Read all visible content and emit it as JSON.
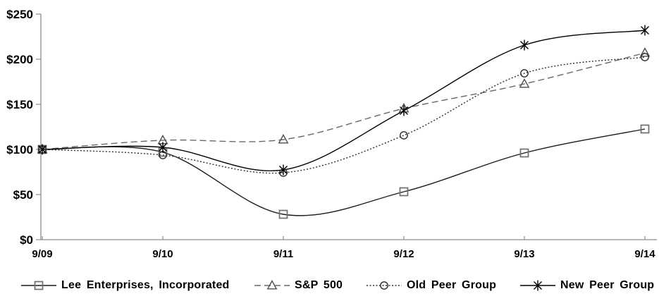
{
  "chart_data": {
    "type": "line",
    "title": "",
    "categories": [
      "9/09",
      "9/10",
      "9/11",
      "9/12",
      "9/13",
      "9/14"
    ],
    "series": [
      {
        "name": "Lee Enterprises, Incorporated",
        "values": [
          100,
          97,
          28,
          53,
          96,
          123
        ],
        "line_style": "solid",
        "marker": "square",
        "line_color": "#1c1c1c",
        "marker_color": "#6f6f6f"
      },
      {
        "name": "S&P 500",
        "values": [
          100,
          110,
          111,
          145,
          173,
          207
        ],
        "line_style": "dashed",
        "marker": "triangle",
        "line_color": "#686868",
        "marker_color": "#4f4f4f"
      },
      {
        "name": "Old Peer Group",
        "values": [
          100,
          94,
          74,
          116,
          184,
          202
        ],
        "line_style": "dotted",
        "marker": "circle",
        "line_color": "#2e2e2e",
        "marker_color": "#2e2e2e"
      },
      {
        "name": "New Peer Group",
        "values": [
          100,
          102,
          77,
          143,
          216,
          232
        ],
        "line_style": "solid",
        "marker": "asterisk",
        "line_color": "#000000",
        "marker_color": "#000000"
      }
    ],
    "xlabel": "",
    "ylabel": "",
    "ylim": [
      0,
      250
    ],
    "y_tick_step": 50,
    "y_ticks": [
      "$0",
      "$50",
      "$100",
      "$150",
      "$200",
      "$250"
    ],
    "grid": false,
    "legend_position": "bottom",
    "axis_color": "#8c8c8c",
    "label_color": "#000000"
  }
}
